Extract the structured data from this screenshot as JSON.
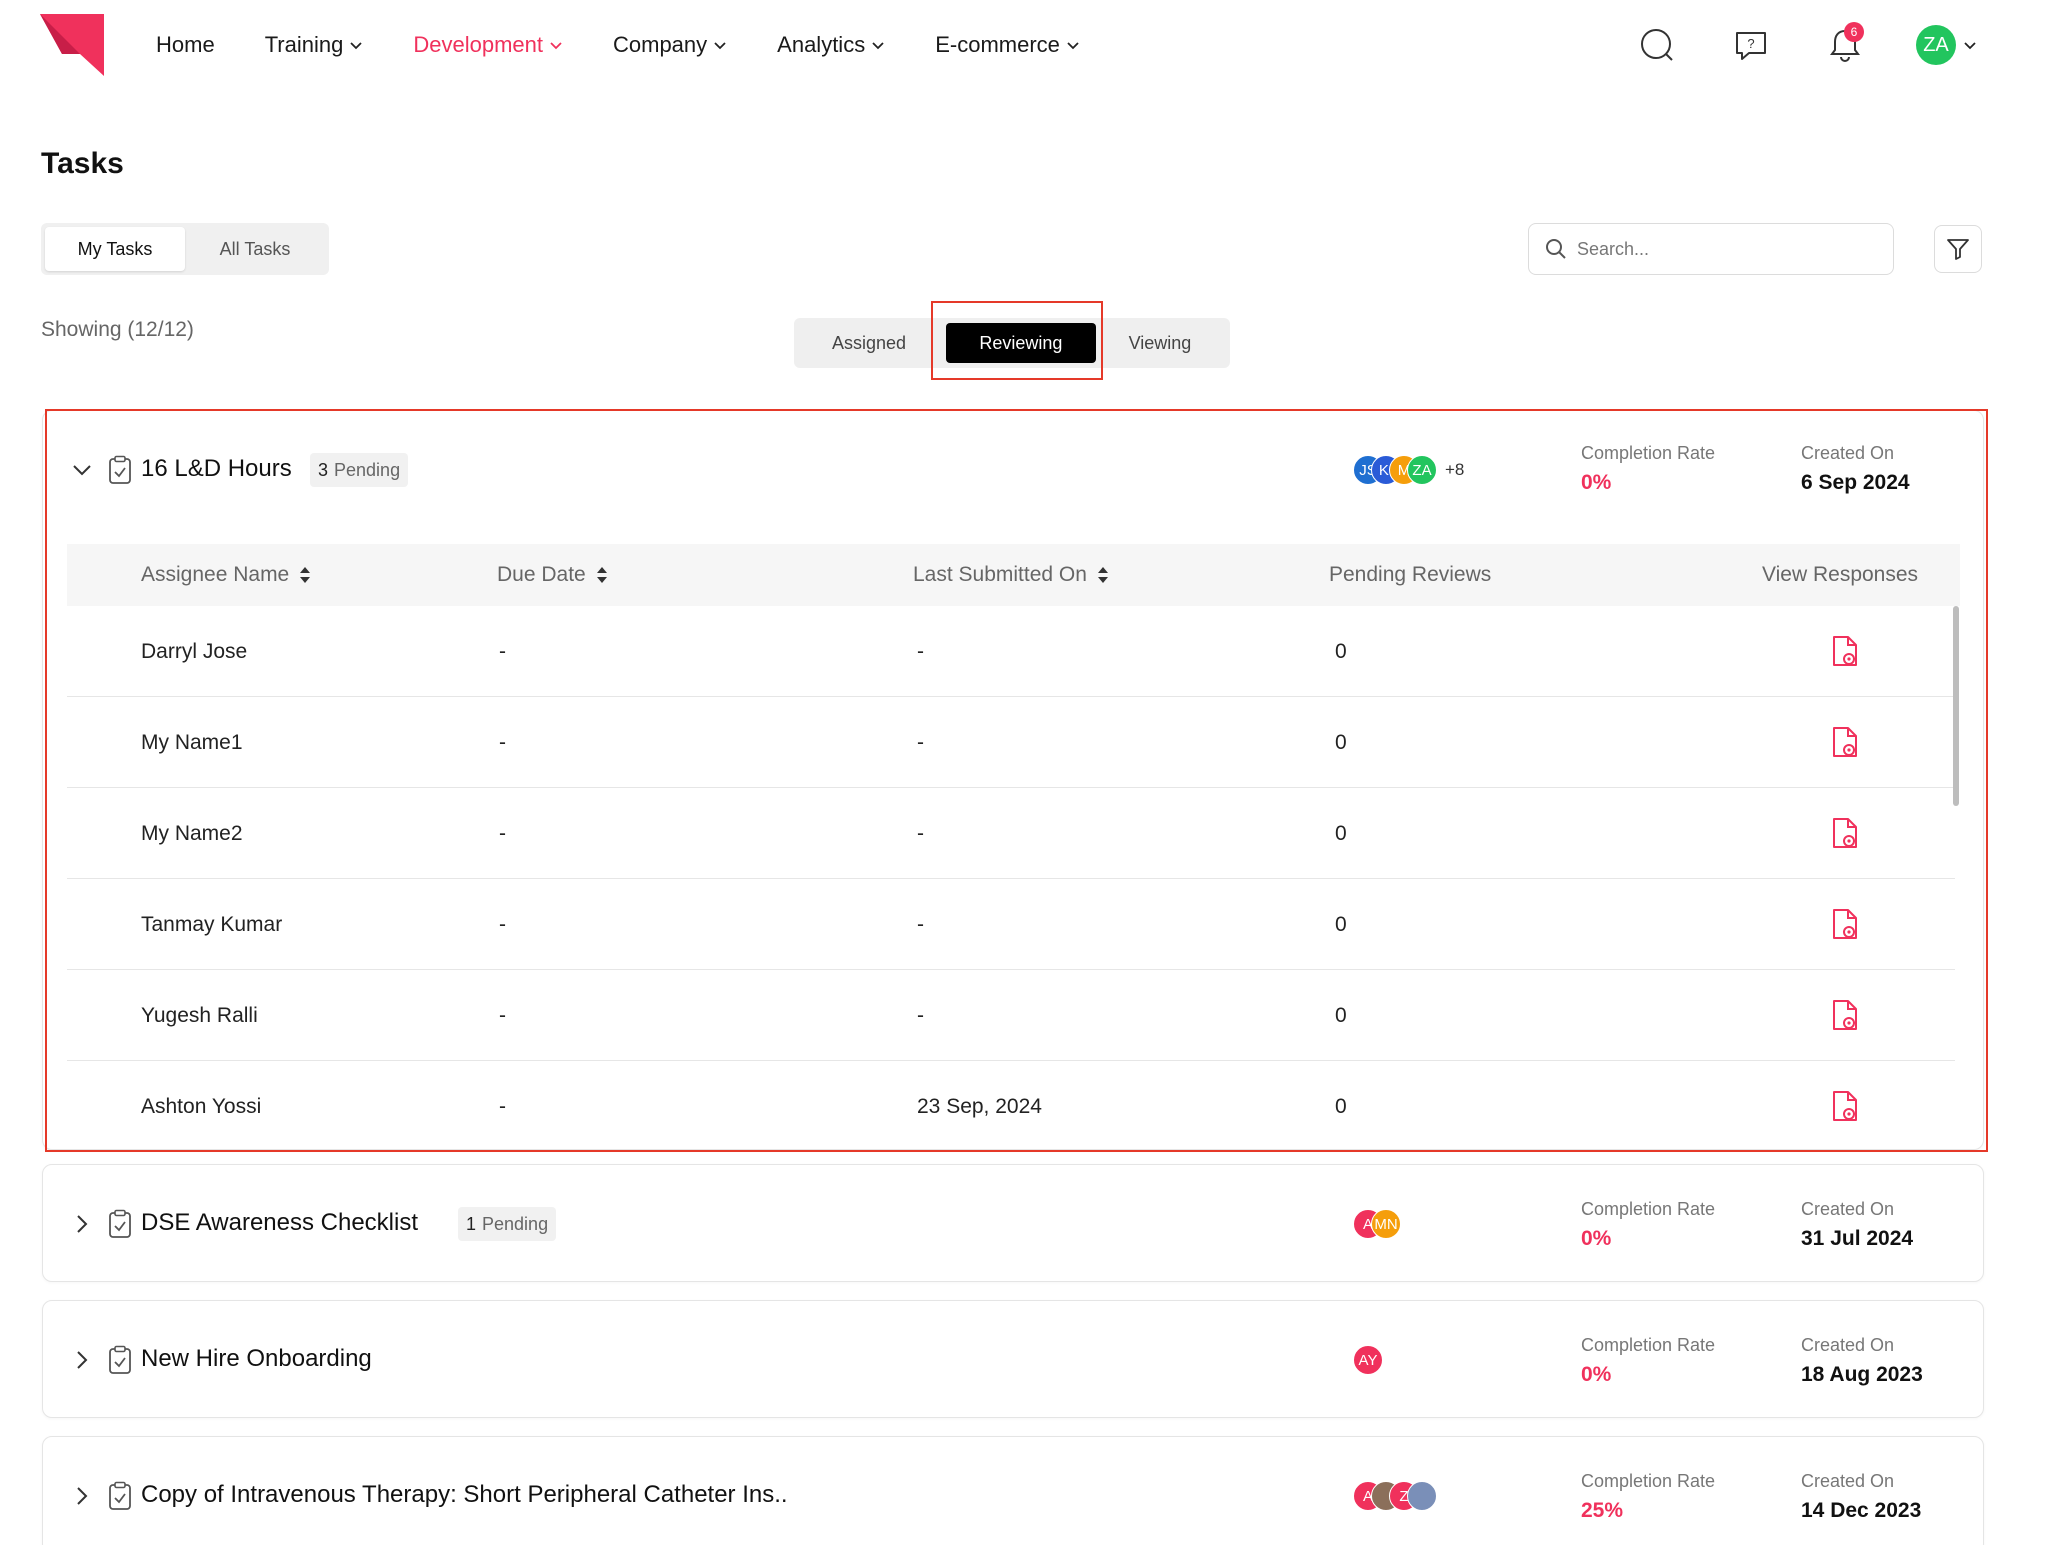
{
  "nav": {
    "items": [
      {
        "label": "Home",
        "has_dropdown": false,
        "active": false
      },
      {
        "label": "Training",
        "has_dropdown": true,
        "active": false
      },
      {
        "label": "Development",
        "has_dropdown": true,
        "active": true
      },
      {
        "label": "Company",
        "has_dropdown": true,
        "active": false
      },
      {
        "label": "Analytics",
        "has_dropdown": true,
        "active": false
      },
      {
        "label": "E-commerce",
        "has_dropdown": true,
        "active": false
      }
    ],
    "notification_count": "6",
    "user_initials": "ZA",
    "accent_color": "#f0315c"
  },
  "page": {
    "title": "Tasks",
    "scope_tabs": [
      "My Tasks",
      "All Tasks"
    ],
    "active_scope": "My Tasks",
    "search_placeholder": "Search...",
    "showing": "Showing (12/12)",
    "role_tabs": [
      "Assigned",
      "Reviewing",
      "Viewing"
    ],
    "active_role": "Reviewing"
  },
  "table_headers": {
    "assignee": "Assignee Name",
    "due": "Due Date",
    "submitted": "Last Submitted On",
    "pending": "Pending Reviews",
    "view": "View Responses"
  },
  "tasks": [
    {
      "title": "16 L&D Hours",
      "pending_count": "3",
      "pending_label": "Pending",
      "avatars": [
        {
          "initials": "JS",
          "color": "#1f6fd1"
        },
        {
          "initials": "KI",
          "color": "#2a5bd7"
        },
        {
          "initials": "M",
          "color": "#f59e0b"
        },
        {
          "initials": "ZA",
          "color": "#22c55e"
        }
      ],
      "more": "+8",
      "completion_label": "Completion Rate",
      "completion": "0%",
      "created_label": "Created On",
      "created": "6 Sep 2024",
      "expanded": true,
      "assignees": [
        {
          "name": "Darryl Jose",
          "due": "-",
          "submitted": "-",
          "pending": "0"
        },
        {
          "name": "My Name1",
          "due": "-",
          "submitted": "-",
          "pending": "0"
        },
        {
          "name": "My Name2",
          "due": "-",
          "submitted": "-",
          "pending": "0"
        },
        {
          "name": "Tanmay Kumar",
          "due": "-",
          "submitted": "-",
          "pending": "0"
        },
        {
          "name": "Yugesh Ralli",
          "due": "-",
          "submitted": "-",
          "pending": "0"
        },
        {
          "name": "Ashton Yossi",
          "due": "-",
          "submitted": "23 Sep, 2024",
          "pending": "0"
        }
      ]
    },
    {
      "title": "DSE Awareness Checklist",
      "pending_count": "1",
      "pending_label": "Pending",
      "avatars": [
        {
          "initials": "A",
          "color": "#f0315c"
        },
        {
          "initials": "MN",
          "color": "#f59e0b"
        }
      ],
      "more": "",
      "completion_label": "Completion Rate",
      "completion": "0%",
      "created_label": "Created On",
      "created": "31 Jul 2024",
      "expanded": false
    },
    {
      "title": "New Hire Onboarding",
      "pending_count": "",
      "pending_label": "",
      "avatars": [
        {
          "initials": "AY",
          "color": "#f0315c"
        }
      ],
      "more": "",
      "completion_label": "Completion Rate",
      "completion": "0%",
      "created_label": "Created On",
      "created": "18 Aug 2023",
      "expanded": false
    },
    {
      "title": "Copy of Intravenous Therapy: Short Peripheral Catheter Ins..",
      "pending_count": "",
      "pending_label": "",
      "avatars": [
        {
          "initials": "A",
          "color": "#f0315c"
        },
        {
          "initials": "",
          "color": "#8b6f5a"
        },
        {
          "initials": "Z",
          "color": "#f0315c"
        },
        {
          "initials": "",
          "color": "#7a8fb8"
        }
      ],
      "more": "",
      "completion_label": "Completion Rate",
      "completion": "25%",
      "created_label": "Created On",
      "created": "14 Dec 2023",
      "expanded": false
    }
  ]
}
